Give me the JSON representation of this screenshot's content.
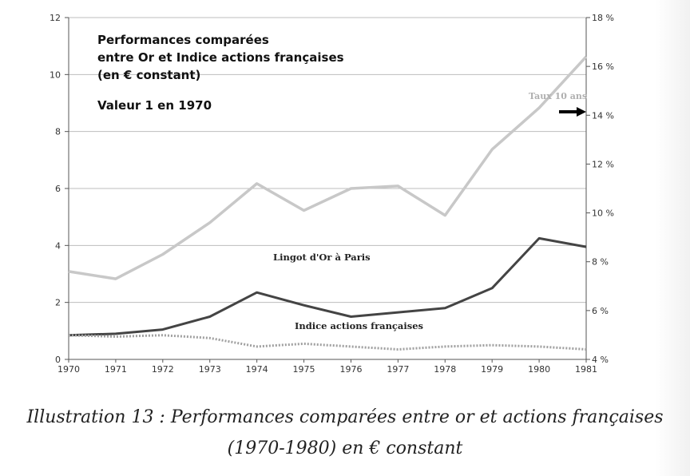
{
  "chart_data": {
    "type": "line",
    "title": "Performances comparées",
    "title_lines": [
      "Performances comparées",
      "entre Or et Indice actions françaises",
      "(en € constant)"
    ],
    "subtitle": "Valeur 1 en 1970",
    "x": [
      "1970",
      "1971",
      "1972",
      "1973",
      "1974",
      "1975",
      "1976",
      "1977",
      "1978",
      "1979",
      "1980",
      "1981"
    ],
    "y_left": {
      "min": 0,
      "max": 12,
      "ticks": [
        "0",
        "2",
        "4",
        "6",
        "8",
        "10",
        "12"
      ]
    },
    "y_right": {
      "min": 4,
      "max": 18,
      "ticks": [
        "4 %",
        "6 %",
        "8 %",
        "10 %",
        "12 %",
        "14 %",
        "16 %",
        "18 %"
      ]
    },
    "grid": true,
    "series": [
      {
        "name": "Taux 10 ans",
        "axis": "right",
        "color": "#c8c8c8",
        "values": [
          7.6,
          7.3,
          8.3,
          9.6,
          11.2,
          10.1,
          11.0,
          11.1,
          9.9,
          12.6,
          14.3,
          16.4
        ]
      },
      {
        "name": "Lingot d'Or à Paris",
        "axis": "left",
        "color": "#444444",
        "values": [
          0.85,
          0.9,
          1.05,
          1.5,
          2.35,
          1.9,
          1.5,
          1.65,
          1.8,
          2.5,
          4.25,
          3.95
        ]
      },
      {
        "name": "Indice actions françaises",
        "axis": "left",
        "color": "#a0a0a0",
        "values": [
          0.85,
          0.8,
          0.85,
          0.75,
          0.45,
          0.55,
          0.45,
          0.35,
          0.45,
          0.5,
          0.45,
          0.35
        ]
      }
    ]
  },
  "caption": {
    "line1": "Illustration 13 : Performances comparées entre or et actions françaises",
    "line2": "(1970-1980) en € constant"
  }
}
